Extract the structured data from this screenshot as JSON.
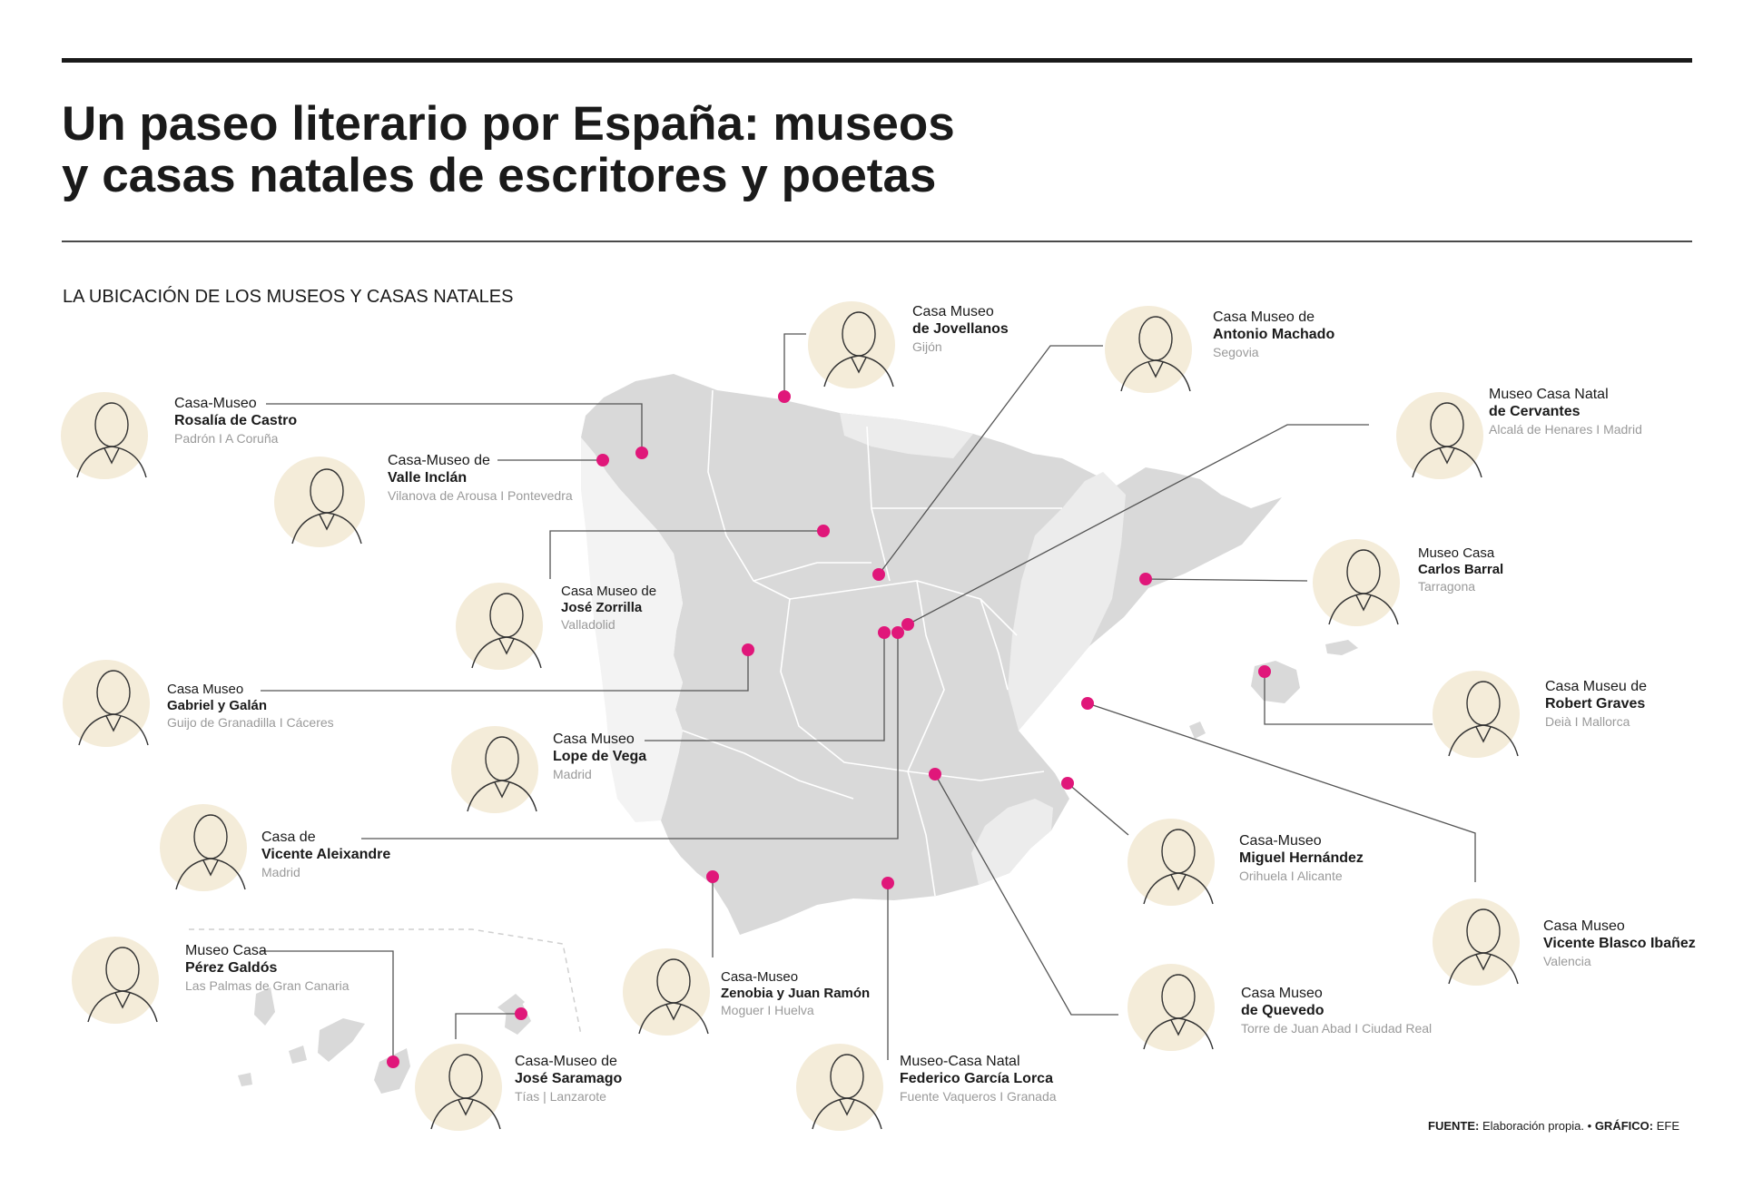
{
  "header": {
    "title_line1": "Un paseo literario por España: museos",
    "title_line2": "y casas natales de escritores y poetas",
    "subtitle": "LA UBICACIÓN DE LOS MUSEOS Y CASAS NATALES"
  },
  "source": {
    "fuente_label": "FUENTE:",
    "fuente_text": "Elaboración propia.",
    "separator": "•",
    "grafico_label": "GRÁFICO:",
    "grafico_text": "EFE"
  },
  "colors": {
    "marker": "#e0177a",
    "land": "#d9d9d9",
    "land_light": "#ececec",
    "portrait_bg": "#f4ecd9",
    "leader_line": "#555555"
  },
  "museums": [
    {
      "id": "rosalia",
      "line1": "Casa-Museo",
      "line2": "Rosalía de Castro",
      "place": "Padrón I A Coruña"
    },
    {
      "id": "valle",
      "line1": "Casa-Museo de",
      "line2": "Valle Inclán",
      "place": "Vilanova de Arousa I Pontevedra"
    },
    {
      "id": "jovellanos",
      "line1": "Casa Museo",
      "line2": "de Jovellanos",
      "place": "Gijón"
    },
    {
      "id": "machado",
      "line1": "Casa Museo de",
      "line2": "Antonio Machado",
      "place": "Segovia"
    },
    {
      "id": "cervantes",
      "line1": "Museo Casa Natal",
      "line2": "de Cervantes",
      "place": "Alcalá de Henares I Madrid"
    },
    {
      "id": "barral",
      "line1": "Museo Casa",
      "line2": "Carlos Barral",
      "place": "Tarragona"
    },
    {
      "id": "graves",
      "line1": "Casa Museu de",
      "line2": "Robert Graves",
      "place": "Deià I Mallorca"
    },
    {
      "id": "zorrilla",
      "line1": "Casa Museo de",
      "line2": "José Zorrilla",
      "place": "Valladolid"
    },
    {
      "id": "gabriel",
      "line1": "Casa Museo",
      "line2": "Gabriel y Galán",
      "place": "Guijo de Granadilla I Cáceres"
    },
    {
      "id": "lope",
      "line1": "Casa Museo",
      "line2": "Lope de Vega",
      "place": "Madrid"
    },
    {
      "id": "aleixandre",
      "line1": "Casa de",
      "line2": "Vicente Aleixandre",
      "place": "Madrid"
    },
    {
      "id": "hernandez",
      "line1": "Casa-Museo",
      "line2": "Miguel Hernández",
      "place": "Orihuela I Alicante"
    },
    {
      "id": "blasco",
      "line1": "Casa Museo",
      "line2": "Vicente Blasco Ibañez",
      "place": "Valencia"
    },
    {
      "id": "galdos",
      "line1": "Museo Casa",
      "line2": "Pérez Galdós",
      "place": "Las Palmas de Gran Canaria"
    },
    {
      "id": "zenobia",
      "line1": "Casa-Museo",
      "line2": "Zenobia y Juan Ramón",
      "place": "Moguer I Huelva"
    },
    {
      "id": "quevedo",
      "line1": "Casa Museo",
      "line2": "de Quevedo",
      "place": "Torre de Juan Abad I Ciudad Real"
    },
    {
      "id": "saramago",
      "line1": "Casa-Museo de",
      "line2": "José Saramago",
      "place": "Tías | Lanzarote"
    },
    {
      "id": "lorca",
      "line1": "Museo-Casa Natal",
      "line2": "Federico García Lorca",
      "place": "Fuente Vaqueros I Granada"
    }
  ]
}
